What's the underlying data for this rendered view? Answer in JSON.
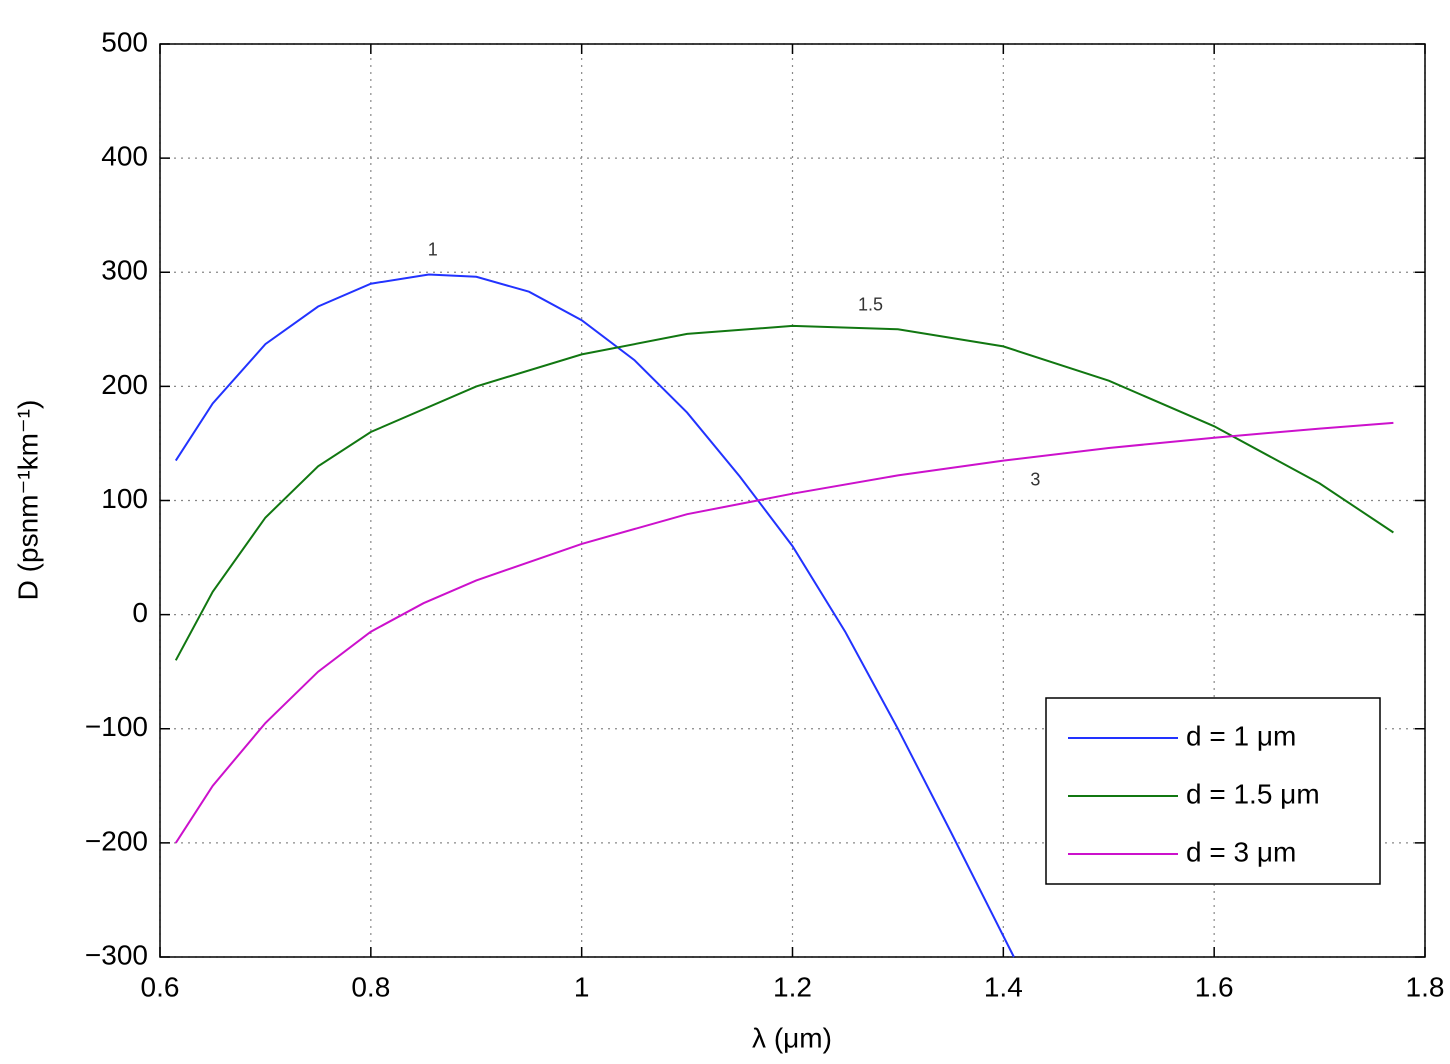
{
  "chart_data": {
    "type": "line",
    "xlabel": "λ (μm)",
    "ylabel": "D (psnm⁻¹km⁻¹)",
    "xlim": [
      0.6,
      1.8
    ],
    "xticks": [
      0.6,
      0.8,
      1,
      1.2,
      1.4,
      1.6,
      1.8
    ],
    "ylim": [
      -300,
      500
    ],
    "yticks": [
      {
        "value": -300,
        "label": "−300"
      },
      {
        "value": -200,
        "label": "−200"
      },
      {
        "value": -100,
        "label": "−100"
      },
      0,
      100,
      200,
      300,
      400,
      500
    ],
    "grid": true,
    "legend": "lower right",
    "series": [
      {
        "name": "d = 1 μm",
        "label": "1",
        "color": "#2233ff",
        "x": [
          0.615,
          0.65,
          0.7,
          0.75,
          0.8,
          0.855,
          0.9,
          0.95,
          1.0,
          1.05,
          1.1,
          1.15,
          1.2,
          1.25,
          1.3,
          1.35,
          1.41
        ],
        "values": [
          135,
          185,
          237,
          270,
          290,
          298,
          296,
          283,
          258,
          223,
          177,
          121,
          60,
          -15,
          -100,
          -190,
          -300
        ]
      },
      {
        "name": "d = 1.5 μm",
        "label": "1.5",
        "color": "#117711",
        "x": [
          0.615,
          0.65,
          0.7,
          0.75,
          0.8,
          0.9,
          1.0,
          1.1,
          1.2,
          1.3,
          1.4,
          1.5,
          1.6,
          1.7,
          1.77
        ],
        "values": [
          -40,
          20,
          85,
          130,
          160,
          200,
          228,
          246,
          253,
          250,
          235,
          205,
          165,
          115,
          72
        ]
      },
      {
        "name": "d = 3 μm",
        "label": "3",
        "color": "#cc11cc",
        "x": [
          0.615,
          0.65,
          0.7,
          0.75,
          0.8,
          0.85,
          0.9,
          1.0,
          1.1,
          1.2,
          1.3,
          1.4,
          1.5,
          1.6,
          1.7,
          1.77
        ],
        "values": [
          -200,
          -150,
          -95,
          -50,
          -15,
          10,
          30,
          62,
          88,
          106,
          122,
          135,
          146,
          155,
          163,
          168
        ]
      }
    ]
  }
}
